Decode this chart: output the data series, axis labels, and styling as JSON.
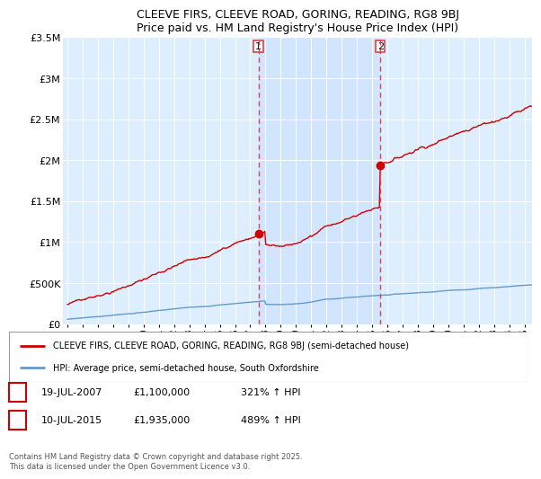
{
  "title": "CLEEVE FIRS, CLEEVE ROAD, GORING, READING, RG8 9BJ",
  "subtitle": "Price paid vs. HM Land Registry's House Price Index (HPI)",
  "legend_line1": "CLEEVE FIRS, CLEEVE ROAD, GORING, READING, RG8 9BJ (semi-detached house)",
  "legend_line2": "HPI: Average price, semi-detached house, South Oxfordshire",
  "marker1_date": "19-JUL-2007",
  "marker1_price": 1100000,
  "marker1_label": "£1,100,000",
  "marker1_hpi": "321% ↑ HPI",
  "marker2_date": "10-JUL-2015",
  "marker2_price": 1935000,
  "marker2_label": "£1,935,000",
  "marker2_hpi": "489% ↑ HPI",
  "copyright_text": "Contains HM Land Registry data © Crown copyright and database right 2025.\nThis data is licensed under the Open Government Licence v3.0.",
  "house_color": "#cc0000",
  "hpi_color": "#6699cc",
  "hpi_fill_color": "#ddeeff",
  "marker_vline_color": "#dd4444",
  "shade_color": "#cce0ff",
  "ylim": [
    0,
    3500000
  ],
  "xlim_start": 1994.7,
  "xlim_end": 2025.5,
  "yticks": [
    0,
    500000,
    1000000,
    1500000,
    2000000,
    2500000,
    3000000,
    3500000
  ],
  "ytick_labels": [
    "£0",
    "£500K",
    "£1M",
    "£1.5M",
    "£2M",
    "£2.5M",
    "£3M",
    "£3.5M"
  ],
  "xticks": [
    1995,
    1996,
    1997,
    1998,
    1999,
    2000,
    2001,
    2002,
    2003,
    2004,
    2005,
    2006,
    2007,
    2008,
    2009,
    2010,
    2011,
    2012,
    2013,
    2014,
    2015,
    2016,
    2017,
    2018,
    2019,
    2020,
    2021,
    2022,
    2023,
    2024,
    2025
  ],
  "background_color": "#ddeeff",
  "sale1_year": 2007.54,
  "sale1_price": 1100000,
  "sale2_year": 2015.54,
  "sale2_price": 1935000
}
